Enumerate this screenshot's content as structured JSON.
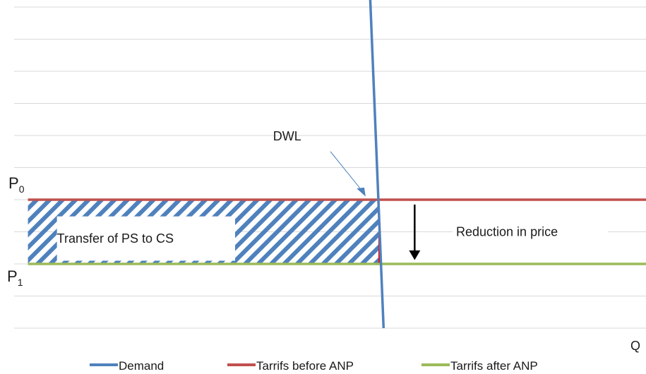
{
  "chart_data": {
    "type": "line",
    "title": "",
    "xlabel": "Q",
    "ylabel": "",
    "price_labels": [
      {
        "main": "P",
        "sub": "0"
      },
      {
        "main": "P",
        "sub": "1"
      }
    ],
    "annotations": {
      "dwl": "DWL",
      "transfer": "Transfer of PS to CS",
      "reduction": "Reduction in price"
    },
    "series": [
      {
        "name": "Demand",
        "color": "#4f81bd",
        "points": [
          [
            5.15,
            10.6
          ],
          [
            5.35,
            0
          ]
        ]
      },
      {
        "name": "Tarrifs before ANP",
        "color": "#c0504d",
        "points": [
          [
            0.2,
            4
          ],
          [
            9.15,
            4
          ]
        ]
      },
      {
        "name": "Tarrifs after ANP",
        "color": "#9bbb59",
        "points": [
          [
            0.2,
            2
          ],
          [
            9.15,
            2
          ]
        ]
      }
    ],
    "areas": [
      {
        "label": "Transfer of PS to CS",
        "pattern": "diagonal-hatch",
        "color": "#4f81bd"
      },
      {
        "label": "DWL",
        "color": "#ff0000"
      }
    ],
    "grid": true,
    "legend_position": "bottom",
    "colors": {
      "grid": "#d9d9d9",
      "arrow": "#000000",
      "dwl": "#ff0000"
    }
  }
}
